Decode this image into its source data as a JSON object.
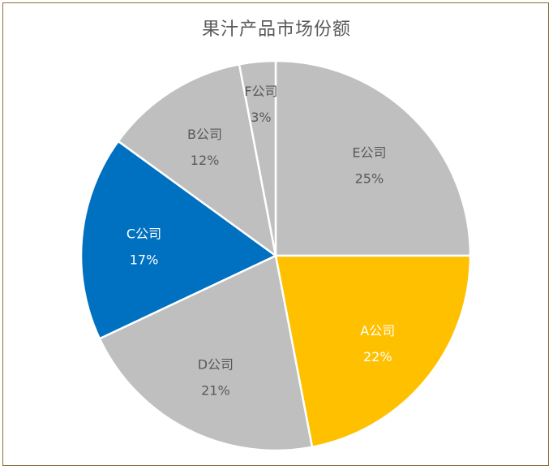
{
  "chart_data": {
    "type": "pie",
    "title": "果汁产品市场份额",
    "start_angle_deg": 0,
    "direction": "clockwise",
    "slices": [
      {
        "label": "E公司",
        "value": 25,
        "percent_label": "25%",
        "color": "#bfbfbf",
        "text_color": "#595959"
      },
      {
        "label": "A公司",
        "value": 22,
        "percent_label": "22%",
        "color": "#ffc000",
        "text_color": "#ffffff"
      },
      {
        "label": "D公司",
        "value": 21,
        "percent_label": "21%",
        "color": "#bfbfbf",
        "text_color": "#595959"
      },
      {
        "label": "C公司",
        "value": 17,
        "percent_label": "17%",
        "color": "#0070c0",
        "text_color": "#ffffff"
      },
      {
        "label": "B公司",
        "value": 12,
        "percent_label": "12%",
        "color": "#bfbfbf",
        "text_color": "#595959"
      },
      {
        "label": "F公司",
        "value": 3,
        "percent_label": "3%",
        "color": "#bfbfbf",
        "text_color": "#595959"
      }
    ]
  }
}
